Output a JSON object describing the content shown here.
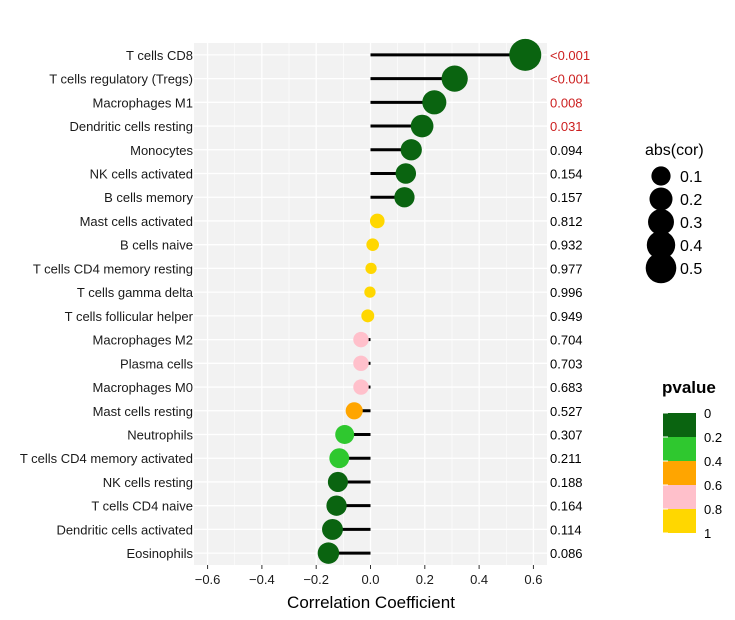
{
  "chart_data": {
    "type": "lollipop",
    "xlabel": "Correlation Coefficient",
    "xlim": [
      -0.65,
      0.65
    ],
    "x_ticks": [
      -0.6,
      -0.4,
      -0.2,
      0.0,
      0.2,
      0.4,
      0.6
    ],
    "x_tick_labels": [
      "−0.6",
      "−0.4",
      "−0.2",
      "0.0",
      "0.2",
      "0.4",
      "0.6"
    ],
    "grid": true,
    "categories": [
      "T cells CD8",
      "T cells regulatory (Tregs)",
      "Macrophages M1",
      "Dendritic cells resting",
      "Monocytes",
      "NK cells activated",
      "B cells memory",
      "Mast cells activated",
      "B cells naive",
      "T cells CD4 memory resting",
      "T cells gamma delta",
      "T cells follicular helper",
      "Macrophages M2",
      "Plasma cells",
      "Macrophages M0",
      "Mast cells resting",
      "Neutrophils",
      "T cells CD4 memory activated",
      "NK cells resting",
      "T cells CD4 naive",
      "Dendritic cells activated",
      "Eosinophils"
    ],
    "cor": [
      0.57,
      0.31,
      0.235,
      0.19,
      0.15,
      0.13,
      0.125,
      0.025,
      0.008,
      0.002,
      -0.002,
      -0.01,
      -0.035,
      -0.035,
      -0.035,
      -0.06,
      -0.095,
      -0.115,
      -0.12,
      -0.125,
      -0.14,
      -0.155
    ],
    "pvalue_labels": [
      "<0.001",
      "<0.001",
      "0.008",
      "0.031",
      "0.094",
      "0.154",
      "0.157",
      "0.812",
      "0.932",
      "0.977",
      "0.996",
      "0.949",
      "0.704",
      "0.703",
      "0.683",
      "0.527",
      "0.307",
      "0.211",
      "0.188",
      "0.164",
      "0.114",
      "0.086"
    ],
    "pvalues": [
      0.0005,
      0.0005,
      0.008,
      0.031,
      0.094,
      0.154,
      0.157,
      0.812,
      0.932,
      0.977,
      0.996,
      0.949,
      0.704,
      0.703,
      0.683,
      0.527,
      0.307,
      0.211,
      0.188,
      0.164,
      0.114,
      0.086
    ],
    "significance_threshold": 0.05,
    "significant_color": "#cc1f1f",
    "normal_color": "#000000",
    "size_legend": {
      "title": "abs(cor)",
      "values": [
        0.1,
        0.2,
        0.3,
        0.4,
        0.5
      ],
      "labels": [
        "0.1",
        "0.2",
        "0.3",
        "0.4",
        "0.5"
      ]
    },
    "color_legend": {
      "title": "pvalue",
      "breaks": [
        0,
        0.2,
        0.4,
        0.6,
        0.8,
        1
      ],
      "labels": [
        "0",
        "0.2",
        "0.4",
        "0.6",
        "0.8",
        "1"
      ],
      "colors": [
        "#0a6410",
        "#2fc82f",
        "#ffa500",
        "#ffc0cb",
        "#ffd700"
      ]
    }
  }
}
